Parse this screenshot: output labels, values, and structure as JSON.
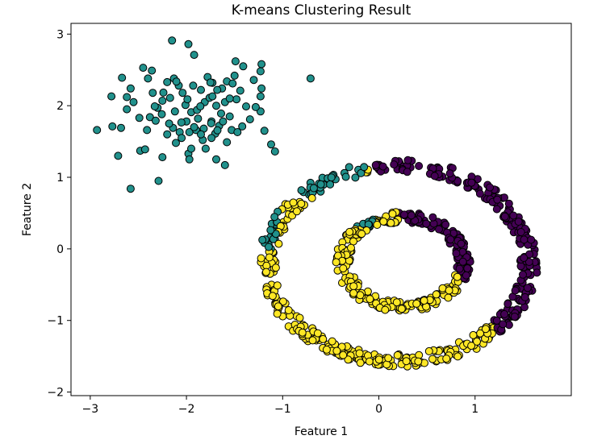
{
  "chart_data": {
    "type": "scatter",
    "title": "K-means Clustering Result",
    "xlabel": "Feature 1",
    "ylabel": "Feature 2",
    "xlim": [
      -3.2,
      2.0
    ],
    "ylim": [
      -2.05,
      3.15
    ],
    "xticks": [
      -3,
      -2,
      -1,
      0,
      1
    ],
    "yticks": [
      -2,
      -1,
      0,
      1,
      2,
      3
    ],
    "grid": false,
    "legend": "none",
    "marker_edge_color": "#000000",
    "clusters": {
      "blob": {
        "color": "#21918c"
      },
      "outer_ring": {
        "color": "#440154"
      },
      "inner_ring": {
        "color": "#fde725"
      }
    },
    "distributions": {
      "blob": {
        "center": [
          -1.95,
          1.95
        ],
        "spread": [
          0.38,
          0.36
        ],
        "count": 110
      },
      "outer_ring": {
        "center": [
          0.2,
          -0.2
        ],
        "radii": [
          1.27,
          1.45
        ],
        "count": 500
      },
      "inner_ring": {
        "center": [
          0.25,
          -0.18
        ],
        "radii": [
          0.55,
          0.7
        ],
        "count": 300
      }
    },
    "points": {
      "blob": [
        [
          -2.15,
          2.91
        ],
        [
          -1.98,
          2.86
        ],
        [
          -1.92,
          2.71
        ],
        [
          -2.67,
          2.39
        ],
        [
          -2.58,
          2.24
        ],
        [
          -2.45,
          2.53
        ],
        [
          -2.36,
          2.49
        ],
        [
          -1.49,
          2.62
        ],
        [
          -1.41,
          2.55
        ],
        [
          -1.22,
          2.58
        ],
        [
          -1.23,
          2.48
        ],
        [
          -0.71,
          2.38
        ],
        [
          -2.78,
          2.13
        ],
        [
          -2.62,
          2.12
        ],
        [
          -2.2,
          2.33
        ],
        [
          -2.13,
          2.38
        ],
        [
          -1.85,
          2.22
        ],
        [
          -1.73,
          2.32
        ],
        [
          -1.63,
          2.24
        ],
        [
          -1.58,
          2.34
        ],
        [
          -1.52,
          2.31
        ],
        [
          -1.44,
          2.21
        ],
        [
          -1.22,
          2.24
        ],
        [
          -1.23,
          2.13
        ],
        [
          -2.49,
          1.83
        ],
        [
          -2.38,
          1.84
        ],
        [
          -2.32,
          1.79
        ],
        [
          -2.01,
          2.01
        ],
        [
          -1.95,
          1.91
        ],
        [
          -1.89,
          1.94
        ],
        [
          -1.81,
          2.05
        ],
        [
          -1.76,
          2.11
        ],
        [
          -1.69,
          2.0
        ],
        [
          -1.64,
          1.89
        ],
        [
          -1.55,
          1.85
        ],
        [
          -1.48,
          2.09
        ],
        [
          -1.38,
          1.99
        ],
        [
          -1.34,
          1.81
        ],
        [
          -1.23,
          1.92
        ],
        [
          -2.93,
          1.66
        ],
        [
          -2.77,
          1.71
        ],
        [
          -2.68,
          1.69
        ],
        [
          -2.41,
          1.66
        ],
        [
          -2.14,
          1.69
        ],
        [
          -2.07,
          1.63
        ],
        [
          -1.97,
          1.63
        ],
        [
          -1.9,
          1.66
        ],
        [
          -1.82,
          1.68
        ],
        [
          -1.7,
          1.61
        ],
        [
          -1.53,
          1.66
        ],
        [
          -1.47,
          1.63
        ],
        [
          -1.19,
          1.65
        ],
        [
          -2.48,
          1.37
        ],
        [
          -2.43,
          1.39
        ],
        [
          -2.11,
          1.48
        ],
        [
          -1.98,
          1.33
        ],
        [
          -1.97,
          1.25
        ],
        [
          -1.8,
          1.4
        ],
        [
          -1.69,
          1.25
        ],
        [
          -1.6,
          1.17
        ],
        [
          -1.12,
          1.46
        ],
        [
          -1.08,
          1.36
        ],
        [
          -2.71,
          1.3
        ],
        [
          -2.29,
          0.95
        ],
        [
          -2.58,
          0.84
        ],
        [
          -2.25,
          2.07
        ],
        [
          -2.04,
          2.18
        ],
        [
          -1.74,
          1.78
        ],
        [
          -1.66,
          1.72
        ],
        [
          -1.6,
          2.05
        ],
        [
          -2.3,
          1.97
        ],
        [
          -2.05,
          1.55
        ],
        [
          -1.88,
          1.82
        ],
        [
          -1.74,
          1.55
        ],
        [
          -1.42,
          1.71
        ],
        [
          -2.55,
          2.05
        ],
        [
          -2.2,
          1.6
        ],
        [
          -1.93,
          2.28
        ],
        [
          -1.83,
          1.52
        ],
        [
          -1.68,
          2.22
        ],
        [
          -1.58,
          1.49
        ],
        [
          -1.28,
          1.98
        ],
        [
          -2.0,
          1.78
        ],
        [
          -2.12,
          1.92
        ],
        [
          -2.35,
          2.18
        ],
        [
          -1.5,
          2.42
        ],
        [
          -1.95,
          1.4
        ],
        [
          -2.25,
          1.28
        ],
        [
          -1.78,
          2.4
        ],
        [
          -2.62,
          1.95
        ],
        [
          -1.3,
          2.36
        ],
        [
          -2.08,
          2.28
        ],
        [
          -1.85,
          1.6
        ],
        [
          -2.4,
          2.38
        ],
        [
          -1.99,
          2.09
        ],
        [
          -1.73,
          2.13
        ],
        [
          -1.55,
          2.1
        ],
        [
          -1.92,
          1.7
        ],
        [
          -2.18,
          1.75
        ],
        [
          -1.62,
          1.78
        ]
      ]
    }
  }
}
